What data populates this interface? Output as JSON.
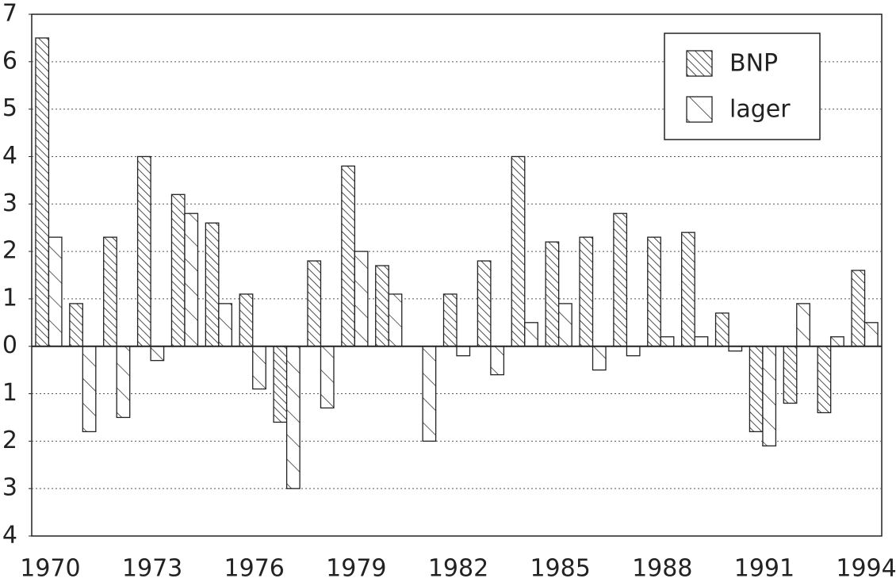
{
  "chart_data": {
    "type": "bar",
    "categories": [
      "1970",
      null,
      null,
      "1973",
      null,
      null,
      "1976",
      null,
      null,
      "1979",
      null,
      null,
      "1982",
      null,
      null,
      "1985",
      null,
      null,
      "1988",
      null,
      null,
      "1991",
      null,
      null,
      "1994"
    ],
    "series": [
      {
        "name": "BNP",
        "color": "#222222",
        "values": [
          6.5,
          0.9,
          2.3,
          4.0,
          3.2,
          2.6,
          1.1,
          -1.6,
          1.8,
          3.8,
          1.7,
          0,
          1.1,
          1.8,
          4.0,
          2.2,
          2.3,
          2.8,
          2.3,
          2.4,
          0.7,
          -1.8,
          -1.2,
          -1.4,
          1.6
        ]
      },
      {
        "name": "lager",
        "color": "#222222",
        "values": [
          2.3,
          -1.8,
          -1.5,
          -0.3,
          2.8,
          0.9,
          -0.9,
          -3.0,
          -1.3,
          2.0,
          1.1,
          -2.0,
          -0.2,
          -0.6,
          0.5,
          0.9,
          -0.5,
          -0.2,
          0.2,
          0.2,
          -0.1,
          -2.1,
          0.9,
          0.2,
          0.5
        ]
      }
    ],
    "ylim": [
      -4,
      7
    ],
    "yticks": [
      {
        "value": -4,
        "label": "4"
      },
      {
        "value": -3,
        "label": "3"
      },
      {
        "value": -2,
        "label": "2"
      },
      {
        "value": -1,
        "label": "1"
      },
      0,
      1,
      2,
      3,
      4,
      5,
      6,
      7
    ],
    "grid": true,
    "legend": "top-right"
  }
}
